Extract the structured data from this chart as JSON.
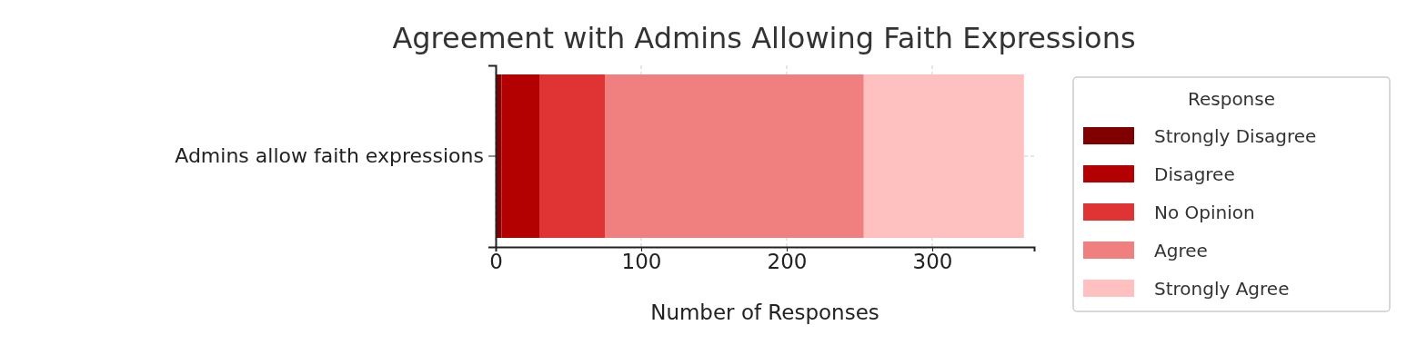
{
  "chart_data": {
    "type": "bar",
    "title": "Agreement with Admins Allowing Faith Expressions",
    "xlabel": "Number of Responses",
    "legend_title": "Response",
    "orientation": "horizontal",
    "stacked": true,
    "categories": [
      "Admins allow faith expressions"
    ],
    "series": [
      {
        "name": "Strongly Disagree",
        "color": "#800000",
        "values": [
          4
        ]
      },
      {
        "name": "Disagree",
        "color": "#b30000",
        "values": [
          26
        ]
      },
      {
        "name": "No Opinion",
        "color": "#e03333",
        "values": [
          45
        ]
      },
      {
        "name": "Agree",
        "color": "#f08080",
        "values": [
          178
        ]
      },
      {
        "name": "Strongly Agree",
        "color": "#ffc0c0",
        "values": [
          110
        ]
      }
    ],
    "xlim": [
      0,
      370
    ],
    "xticks": [
      0,
      100,
      200,
      300
    ],
    "grid": true,
    "legend": "right"
  }
}
